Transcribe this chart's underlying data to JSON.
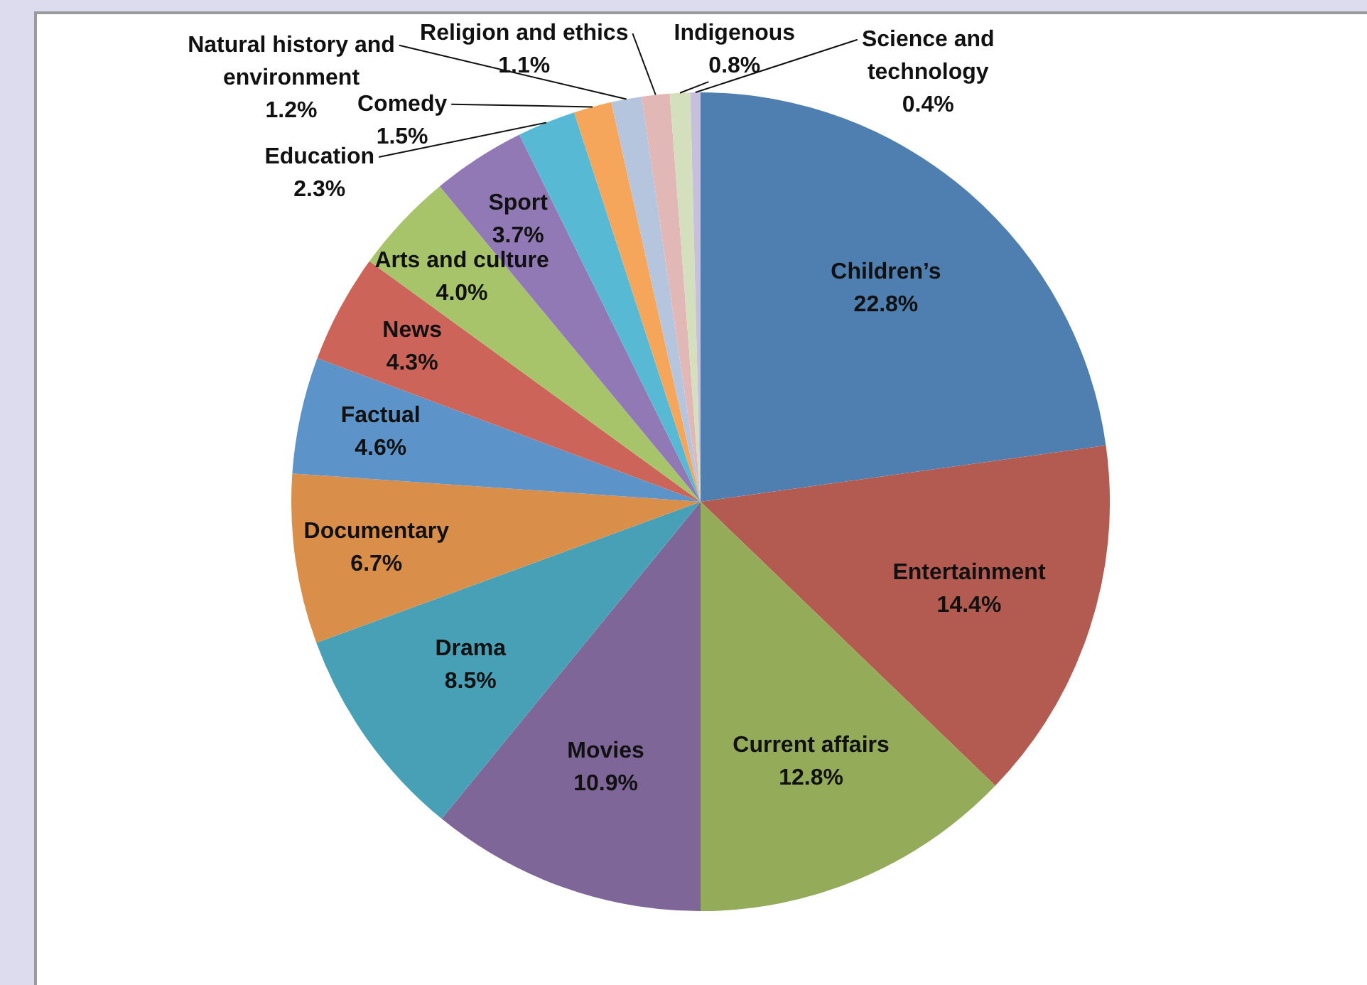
{
  "chart_data": {
    "type": "pie",
    "categories": [
      "Children’s",
      "Entertainment",
      "Current affairs",
      "Movies",
      "Drama",
      "Documentary",
      "Factual",
      "News",
      "Arts and culture",
      "Sport",
      "Education",
      "Comedy",
      "Natural history and environment",
      "Religion and ethics",
      "Indigenous",
      "Science and technology"
    ],
    "values": [
      22.8,
      14.4,
      12.8,
      10.9,
      8.5,
      6.7,
      4.6,
      4.3,
      4.0,
      3.7,
      2.3,
      1.5,
      1.2,
      1.1,
      0.8,
      0.4
    ],
    "value_labels": [
      "22.8%",
      "14.4%",
      "12.8%",
      "10.9%",
      "8.5%",
      "6.7%",
      "4.6%",
      "4.3%",
      "4.0%",
      "3.7%",
      "2.3%",
      "1.5%",
      "1.2%",
      "1.1%",
      "0.8%",
      "0.4%"
    ],
    "colors": [
      "#4e7fb0",
      "#b35b51",
      "#94ab5a",
      "#7e6699",
      "#47a0b5",
      "#d98e49",
      "#5c93c8",
      "#cc6459",
      "#a8c46b",
      "#9179b5",
      "#57b9d3",
      "#f6a65b",
      "#b5c5de",
      "#e2b8b6",
      "#d4e0bd",
      "#c8c0da"
    ]
  }
}
